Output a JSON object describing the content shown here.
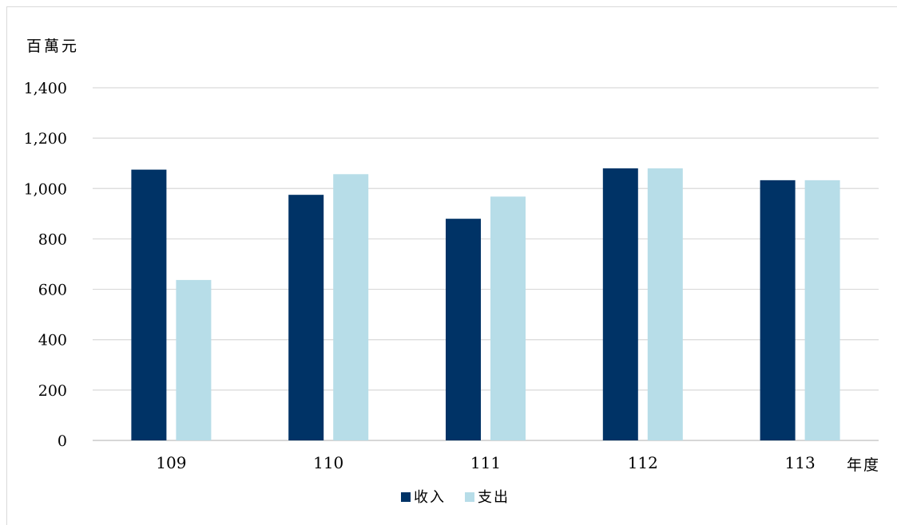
{
  "chart_data": {
    "type": "bar",
    "unit_label": "百萬元",
    "xlabel": "年度",
    "categories": [
      "109",
      "110",
      "111",
      "112",
      "113"
    ],
    "ylim": [
      0,
      1400
    ],
    "yticks": [
      0,
      200,
      400,
      600,
      800,
      1000,
      1200,
      1400
    ],
    "ytick_labels": [
      "0",
      "200",
      "400",
      "600",
      "800",
      "1,000",
      "1,200",
      "1,400"
    ],
    "grid": true,
    "legend_position": "bottom",
    "series": [
      {
        "name": "收入",
        "color": "#003366",
        "values": [
          1075,
          975,
          880,
          1080,
          1033
        ]
      },
      {
        "name": "支出",
        "color": "#b7dde8",
        "values": [
          637,
          1057,
          968,
          1080,
          1033
        ]
      }
    ]
  },
  "colors": {
    "grid": "#d9d9d9",
    "axis": "#bfbfbf",
    "text": "#000000"
  }
}
